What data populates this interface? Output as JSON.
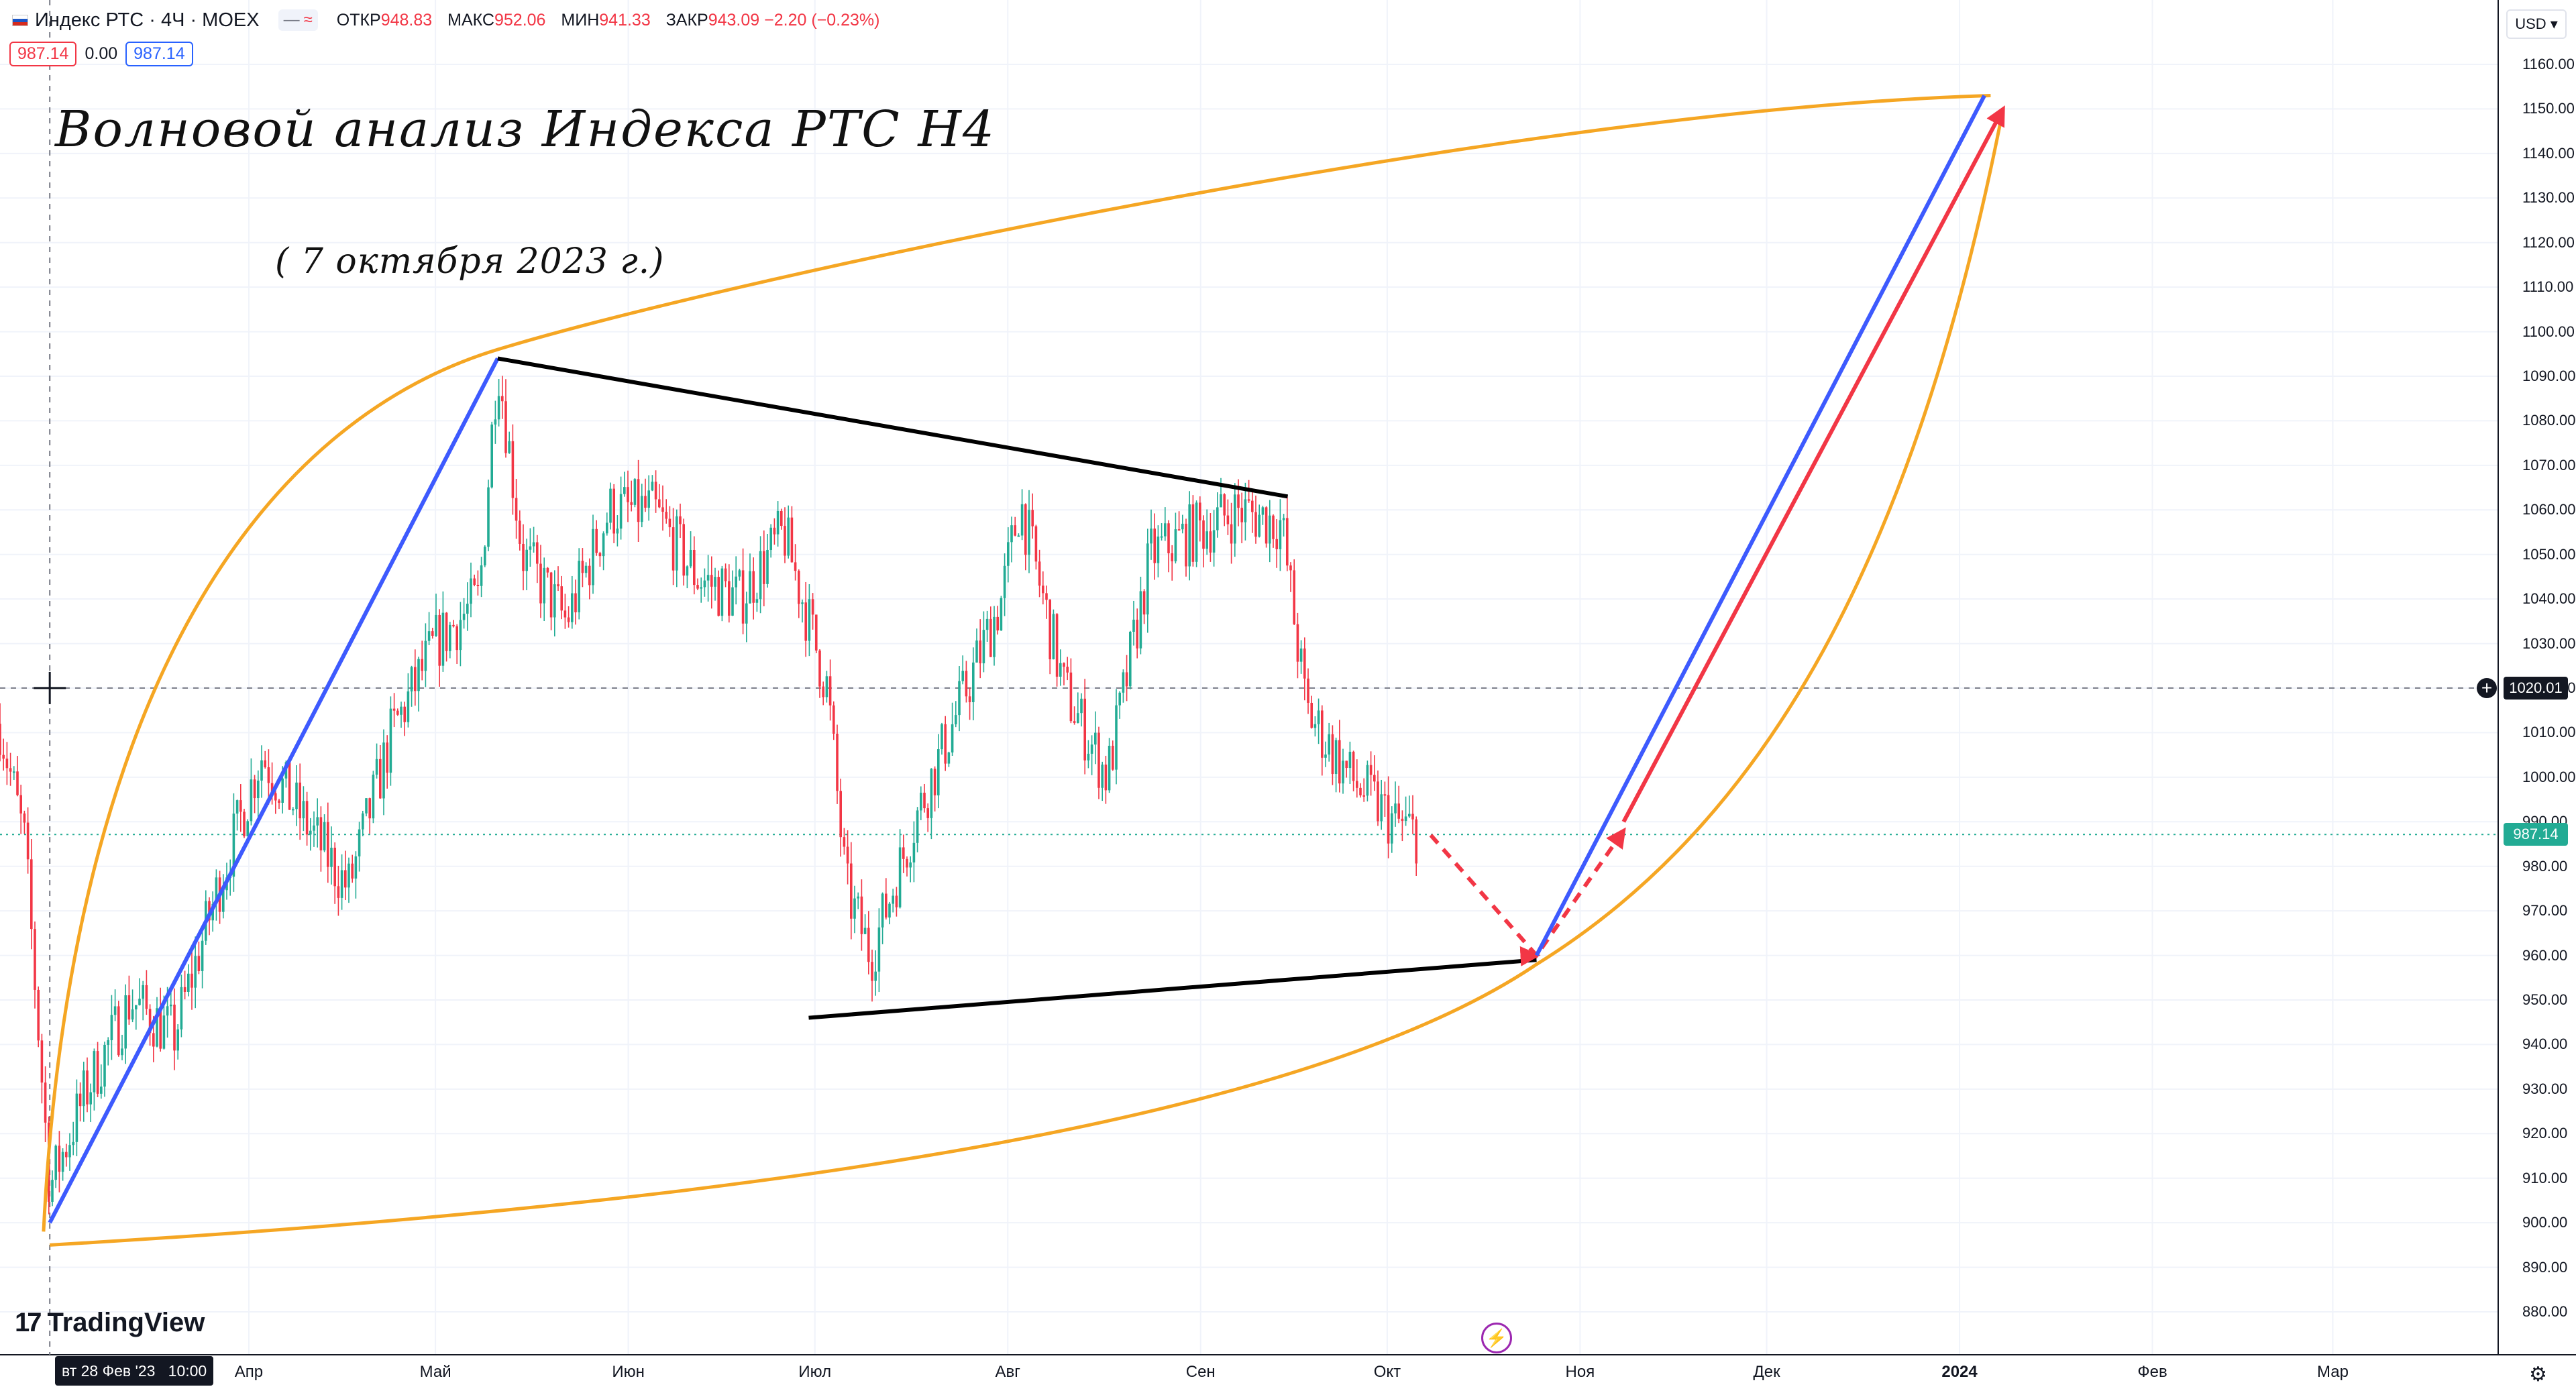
{
  "header": {
    "symbol": "Индекс РТС · 4Ч · MOEX",
    "pill_minus": "—",
    "pill_wave": "≈",
    "ohlc": [
      {
        "label": "ОТКР",
        "value": "948.83"
      },
      {
        "label": "МАКС",
        "value": "952.06"
      },
      {
        "label": "МИН",
        "value": "941.33"
      },
      {
        "label": "ЗАКР",
        "value": "943.09 −2.20 (−0.23%)"
      }
    ],
    "bid": "987.14",
    "spread": "0.00",
    "ask": "987.14",
    "currency": "USD"
  },
  "annotations": {
    "title": "Волновой анализ Индекса РТС Н4",
    "subtitle": "( 7 октября 2023 г.)"
  },
  "branding": {
    "logo_text": "TradingView",
    "logo_mark": "17"
  },
  "time_axis": {
    "cursor_date": "вт 28 Фев '23",
    "cursor_time": "10:00",
    "labels": [
      {
        "text": "Апр",
        "bold": false
      },
      {
        "text": "Май",
        "bold": false
      },
      {
        "text": "Июн",
        "bold": false
      },
      {
        "text": "Июл",
        "bold": false
      },
      {
        "text": "Авг",
        "bold": false
      },
      {
        "text": "Сен",
        "bold": false
      },
      {
        "text": "Окт",
        "bold": false
      },
      {
        "text": "Ноя",
        "bold": false
      },
      {
        "text": "Дек",
        "bold": false
      },
      {
        "text": "2024",
        "bold": true
      },
      {
        "text": "Фев",
        "bold": false
      },
      {
        "text": "Мар",
        "bold": false
      }
    ]
  },
  "price_axis": {
    "labels": [
      "880.00",
      "890.00",
      "900.00",
      "910.00",
      "920.00",
      "930.00",
      "940.00",
      "950.00",
      "960.00",
      "970.00",
      "980.00",
      "990.00",
      "1000.00",
      "1010.00",
      "1020.00",
      "1030.00",
      "1040.00",
      "1050.00",
      "1060.00",
      "1070.00",
      "1080.00",
      "1090.00",
      "1100.00",
      "1110.00",
      "1120.00",
      "1130.00",
      "1140.00",
      "1150.00",
      "1160.00"
    ],
    "crosshair_price": "1020.01",
    "last_price": "987.14"
  },
  "colors": {
    "up": "#22ab94",
    "down": "#f23645",
    "blue_line": "#3d5afe",
    "red_arrow": "#f23645",
    "orange_curve": "#f5a623",
    "trend_line": "#000000",
    "grid": "#f0f3fa"
  },
  "chart_data": {
    "type": "candlestick",
    "title": "",
    "interval": "4H",
    "ylim": [
      880,
      1160
    ],
    "xlim": [
      "2023-02-20",
      "2024-03-25"
    ],
    "approx_daily_closes": [
      {
        "date": "2023-02-20",
        "close": 1012
      },
      {
        "date": "2023-02-24",
        "close": 985
      },
      {
        "date": "2023-02-28",
        "close": 908
      },
      {
        "date": "2023-03-06",
        "close": 930
      },
      {
        "date": "2023-03-13",
        "close": 950
      },
      {
        "date": "2023-03-20",
        "close": 942
      },
      {
        "date": "2023-03-27",
        "close": 975
      },
      {
        "date": "2023-04-03",
        "close": 1005
      },
      {
        "date": "2023-04-10",
        "close": 990
      },
      {
        "date": "2023-04-17",
        "close": 975
      },
      {
        "date": "2023-04-24",
        "close": 1010
      },
      {
        "date": "2023-05-01",
        "close": 1030
      },
      {
        "date": "2023-05-08",
        "close": 1040
      },
      {
        "date": "2023-05-11",
        "close": 1094
      },
      {
        "date": "2023-05-15",
        "close": 1050
      },
      {
        "date": "2023-05-22",
        "close": 1035
      },
      {
        "date": "2023-05-29",
        "close": 1060
      },
      {
        "date": "2023-06-05",
        "close": 1060
      },
      {
        "date": "2023-06-12",
        "close": 1045
      },
      {
        "date": "2023-06-19",
        "close": 1040
      },
      {
        "date": "2023-06-26",
        "close": 1055
      },
      {
        "date": "2023-07-03",
        "close": 1020
      },
      {
        "date": "2023-07-06",
        "close": 975
      },
      {
        "date": "2023-07-10",
        "close": 960
      },
      {
        "date": "2023-07-17",
        "close": 990
      },
      {
        "date": "2023-07-24",
        "close": 1015
      },
      {
        "date": "2023-07-31",
        "close": 1040
      },
      {
        "date": "2023-08-03",
        "close": 1062
      },
      {
        "date": "2023-08-10",
        "close": 1020
      },
      {
        "date": "2023-08-17",
        "close": 1000
      },
      {
        "date": "2023-08-24",
        "close": 1050
      },
      {
        "date": "2023-08-31",
        "close": 1055
      },
      {
        "date": "2023-09-07",
        "close": 1060
      },
      {
        "date": "2023-09-14",
        "close": 1057
      },
      {
        "date": "2023-09-18",
        "close": 1015
      },
      {
        "date": "2023-09-25",
        "close": 1000
      },
      {
        "date": "2023-10-02",
        "close": 990
      },
      {
        "date": "2023-10-06",
        "close": 987.14
      }
    ],
    "annotation_lines": [
      {
        "kind": "blue_trend",
        "from": {
          "date": "2023-02-28",
          "price": 900
        },
        "to": {
          "date": "2023-05-11",
          "price": 1094
        }
      },
      {
        "kind": "resistance",
        "from": {
          "date": "2023-05-11",
          "price": 1094
        },
        "to": {
          "date": "2023-09-15",
          "price": 1063
        }
      },
      {
        "kind": "support",
        "from": {
          "date": "2023-06-30",
          "price": 946
        },
        "to": {
          "date": "2023-10-25",
          "price": 959
        }
      },
      {
        "kind": "forecast_dashed",
        "points": [
          {
            "date": "2023-10-08",
            "price": 987
          },
          {
            "date": "2023-10-25",
            "price": 960
          },
          {
            "date": "2023-11-08",
            "price": 988
          }
        ]
      },
      {
        "kind": "blue_forecast",
        "from": {
          "date": "2023-10-25",
          "price": 960
        },
        "to": {
          "date": "2024-01-05",
          "price": 1153
        }
      },
      {
        "kind": "red_forecast_arrow",
        "from": {
          "date": "2023-11-08",
          "price": 990
        },
        "to": {
          "date": "2024-01-08",
          "price": 1150
        }
      }
    ],
    "crosshair": {
      "date": "2023-02-28",
      "price": 1020.01
    },
    "last_price": 987.14
  }
}
